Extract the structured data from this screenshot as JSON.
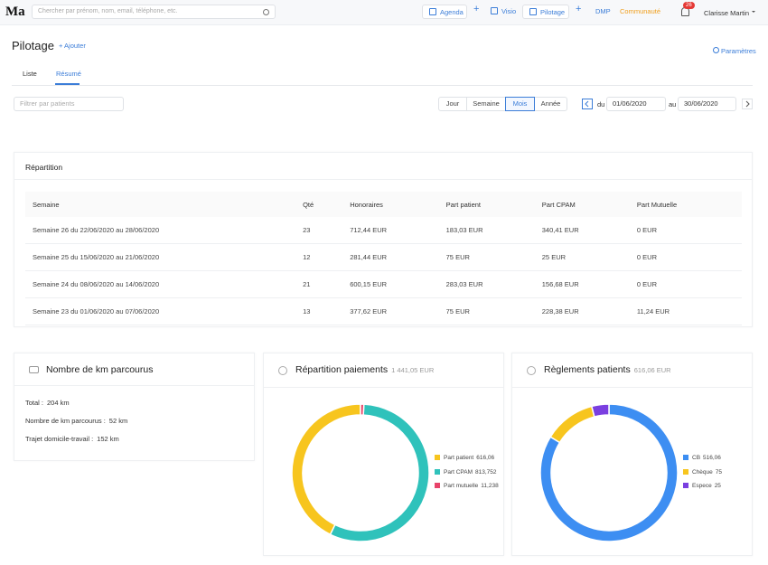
{
  "header": {
    "logo": "Ma",
    "search_placeholder": "Chercher par prénom, nom, email, téléphone, etc.",
    "nav": [
      "Agenda",
      "Visio",
      "Pilotage",
      "DMP",
      "Communauté"
    ],
    "notifications": 26,
    "user": "Clarisse Martin"
  },
  "page": {
    "title": "Pilotage",
    "add": "+ Ajouter",
    "settings": "Paramètres",
    "tabs": [
      "Liste",
      "Résumé"
    ],
    "filter_placeholder": "Filtrer par patients",
    "periods": [
      "Jour",
      "Semaine",
      "Mois",
      "Année"
    ],
    "from_label": "du",
    "from": "01/06/2020",
    "to_label": "au",
    "to": "30/06/2020"
  },
  "repartition": {
    "title": "Répartition",
    "columns": [
      "Semaine",
      "Qté",
      "Honoraires",
      "Part patient",
      "Part CPAM",
      "Part Mutuelle"
    ],
    "rows": [
      [
        "Semaine 26 du 22/06/2020 au 28/06/2020",
        "23",
        "712,44 EUR",
        "183,03 EUR",
        "340,41 EUR",
        "0 EUR"
      ],
      [
        "Semaine 25 du 15/06/2020 au 21/06/2020",
        "12",
        "281,44 EUR",
        "75 EUR",
        "25 EUR",
        "0 EUR"
      ],
      [
        "Semaine 24 du 08/06/2020 au 14/06/2020",
        "21",
        "600,15 EUR",
        "283,03 EUR",
        "156,68 EUR",
        "0 EUR"
      ],
      [
        "Semaine 23 du 01/06/2020 au 07/06/2020",
        "13",
        "377,62 EUR",
        "75 EUR",
        "228,38 EUR",
        "11,24 EUR"
      ]
    ]
  },
  "km": {
    "title": "Nombre de km parcourus",
    "items": [
      [
        "Total :",
        "204 km"
      ],
      [
        "Nombre de km parcourus :",
        "52 km"
      ],
      [
        "Trajet domicile-travail :",
        "152 km"
      ]
    ]
  },
  "chart_data": [
    {
      "type": "pie",
      "title": "Répartition paiements",
      "subtitle": "1 441,05 EUR",
      "categories": [
        "Part patient",
        "Part CPAM",
        "Part mutuelle"
      ],
      "values": [
        616.06,
        813.752,
        11.238
      ],
      "value_labels": [
        "616,06",
        "813,752",
        "11,238"
      ],
      "colors": [
        "#f7c51e",
        "#2fc2bb",
        "#e8436a"
      ],
      "clockwise": false
    },
    {
      "type": "pie",
      "title": "Règlements patients",
      "subtitle": "616,06 EUR",
      "categories": [
        "CB",
        "Chèque",
        "Espece"
      ],
      "values": [
        516.06,
        75,
        25
      ],
      "value_labels": [
        "516,06",
        "75",
        "25"
      ],
      "colors": [
        "#3d8ef2",
        "#f7c51e",
        "#7a3fe0"
      ],
      "clockwise": true
    }
  ]
}
